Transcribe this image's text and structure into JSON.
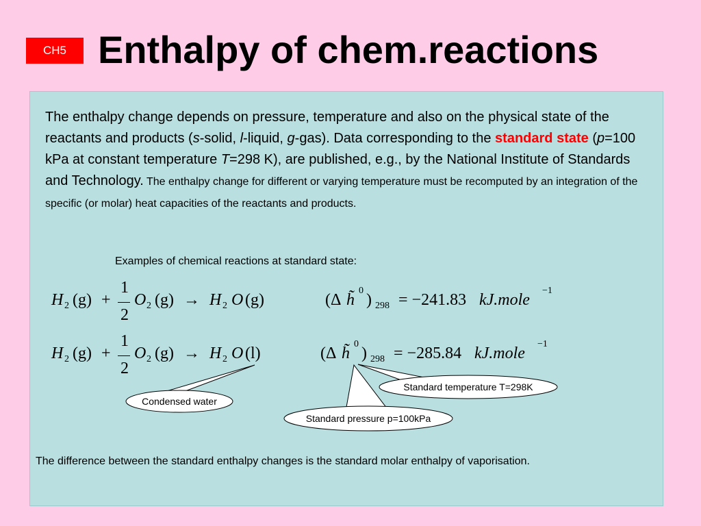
{
  "badge": "CH5",
  "title": "Enthalpy of chem.reactions",
  "paragraph": [
    "The enthalpy change depends on pressure, temperature and also on the physical state of the reactants and products (",
    "s",
    "-solid, ",
    "l",
    "-liquid, ",
    "g",
    "-gas). Data corresponding to the ",
    "standard state",
    " (",
    "p",
    "=100 kPa at constant temperature ",
    "T",
    "=298 K), are published, e.g., by the National Institute of Standards and Technology.",
    " The enthalpy change for different or varying temperature must be recomputed by an integration of the specific (or molar) heat capacities of the reactants and products."
  ],
  "examples_caption": "Examples of chemical reactions at standard state:",
  "equations": [
    {
      "h1": "H",
      "h1_sub": "2",
      "phase1": "(g)",
      "plus": "+",
      "num": "1",
      "den": "2",
      "o": "O",
      "o_sub": "2",
      "phase2": "(g)",
      "arrow": "→",
      "h2": "H",
      "h2_sub": "2",
      "o2": "O",
      "phase3": "(g)",
      "open": "(Δ",
      "h": "h̃",
      "sup": "0",
      "close": ")",
      "sub": "298",
      "value": "= −241.83",
      "unit": "kJ.mole",
      "exp": "−1"
    },
    {
      "h1": "H",
      "h1_sub": "2",
      "phase1": "(g)",
      "plus": "+",
      "num": "1",
      "den": "2",
      "o": "O",
      "o_sub": "2",
      "phase2": "(g)",
      "arrow": "→",
      "h2": "H",
      "h2_sub": "2",
      "o2": "O",
      "phase3": "(l)",
      "open": "(Δ",
      "h": "h̃",
      "sup": "0",
      "close": ")",
      "sub": "298",
      "value": "= −285.84",
      "unit": "kJ.mole",
      "exp": "−1"
    }
  ],
  "callouts": [
    "Condensed water",
    "Standard temperature T=298K",
    "Standard pressure p=100kPa"
  ],
  "conclusion": "The difference between the standard enthalpy changes is the standard molar enthalpy of vaporisation."
}
